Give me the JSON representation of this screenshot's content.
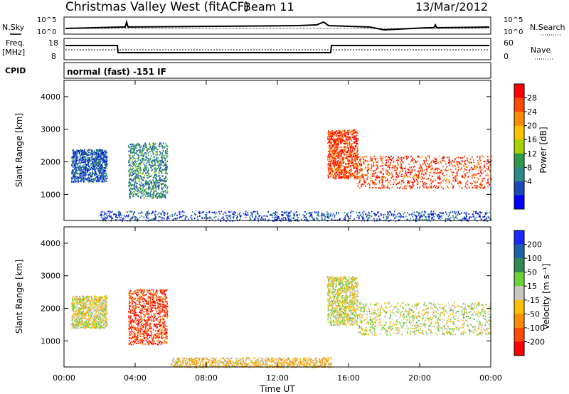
{
  "header": {
    "title": "Christmas Valley West (fitACF)",
    "beam": "Beam 11",
    "date": "13/Mar/2012"
  },
  "noise_panel": {
    "left_label": "N.Sky",
    "right_label": "N.Search",
    "ticks_left": [
      "10^5",
      "10^0"
    ],
    "ticks_right": [
      "10^5",
      "10^0"
    ]
  },
  "freq_panel": {
    "left_label": "Freq.",
    "left_units": "[MHz]",
    "right_label": "Nave",
    "ticks_left": [
      "18",
      "8"
    ],
    "ticks_right": [
      "60",
      "0"
    ]
  },
  "cpid_panel": {
    "label": "CPID",
    "text": "normal (fast) -151 IF"
  },
  "power_panel": {
    "ylabel": "Slant Range [km]",
    "yticks": [
      "4000",
      "3000",
      "2000",
      "1000"
    ],
    "cbar_label": "Power [dB]",
    "cbar_ticks": [
      "28",
      "24",
      "20",
      "16",
      "12",
      "8",
      "4"
    ],
    "cbar_colors": [
      "#ff0000",
      "#ff4a00",
      "#ff8c00",
      "#ffc400",
      "#a4d400",
      "#2e9a4a",
      "#2e8a8a",
      "#1a4ab8",
      "#0000ff"
    ]
  },
  "velocity_panel": {
    "ylabel": "Slant Range [km]",
    "yticks": [
      "4000",
      "3000",
      "2000",
      "1000"
    ],
    "cbar_label": "Velocity [m s⁻¹]",
    "cbar_ticks": [
      "200",
      "100",
      "50",
      "15",
      "-15",
      "-50",
      "-100",
      "-200"
    ],
    "cbar_colors": [
      "#1a2aff",
      "#1e62a8",
      "#2e8a52",
      "#6ad236",
      "#c8c8c0",
      "#ffbe00",
      "#ff8c00",
      "#ff4a00",
      "#ff0000"
    ]
  },
  "xaxis": {
    "label": "Time UT",
    "ticks": [
      "00:00",
      "04:00",
      "08:00",
      "12:00",
      "16:00",
      "20:00",
      "00:00"
    ]
  },
  "chart_data": {
    "type": "heatmap",
    "title": "Christmas Valley West (fitACF)",
    "xlabel": "Time UT",
    "xlim": [
      "00:00",
      "24:00"
    ],
    "ylim": [
      200,
      4500
    ],
    "panels": [
      {
        "name": "Power",
        "units": "dB",
        "ylabel": "Slant Range [km]",
        "color_range": [
          0,
          30
        ],
        "regions": [
          {
            "t_start": 0.4,
            "t_end": 2.4,
            "r_low": 1400,
            "r_high": 2400,
            "value": 6
          },
          {
            "t_start": 3.6,
            "t_end": 5.8,
            "r_low": 900,
            "r_high": 2600,
            "value": 9
          },
          {
            "t_start": 14.8,
            "t_end": 16.5,
            "r_low": 1500,
            "r_high": 3000,
            "value": 26
          },
          {
            "t_start": 16.5,
            "t_end": 24.0,
            "r_low": 1200,
            "r_high": 2200,
            "value": 26
          },
          {
            "t_start": 2.0,
            "t_end": 24.0,
            "r_low": 200,
            "r_high": 500,
            "value": 5
          }
        ]
      },
      {
        "name": "Velocity",
        "units": "m s^-1",
        "ylabel": "Slant Range [km]",
        "color_range": [
          -200,
          200
        ],
        "regions": [
          {
            "t_start": 0.4,
            "t_end": 2.4,
            "r_low": 1400,
            "r_high": 2400,
            "value": -10
          },
          {
            "t_start": 3.6,
            "t_end": 5.8,
            "r_low": 900,
            "r_high": 2600,
            "value": -150
          },
          {
            "t_start": 14.8,
            "t_end": 16.5,
            "r_low": 1500,
            "r_high": 3000,
            "value": 0
          },
          {
            "t_start": 16.5,
            "t_end": 24.0,
            "r_low": 1200,
            "r_high": 2200,
            "value": 0
          },
          {
            "t_start": 6.0,
            "t_end": 15.0,
            "r_low": 200,
            "r_high": 500,
            "value": -40
          }
        ]
      }
    ]
  }
}
